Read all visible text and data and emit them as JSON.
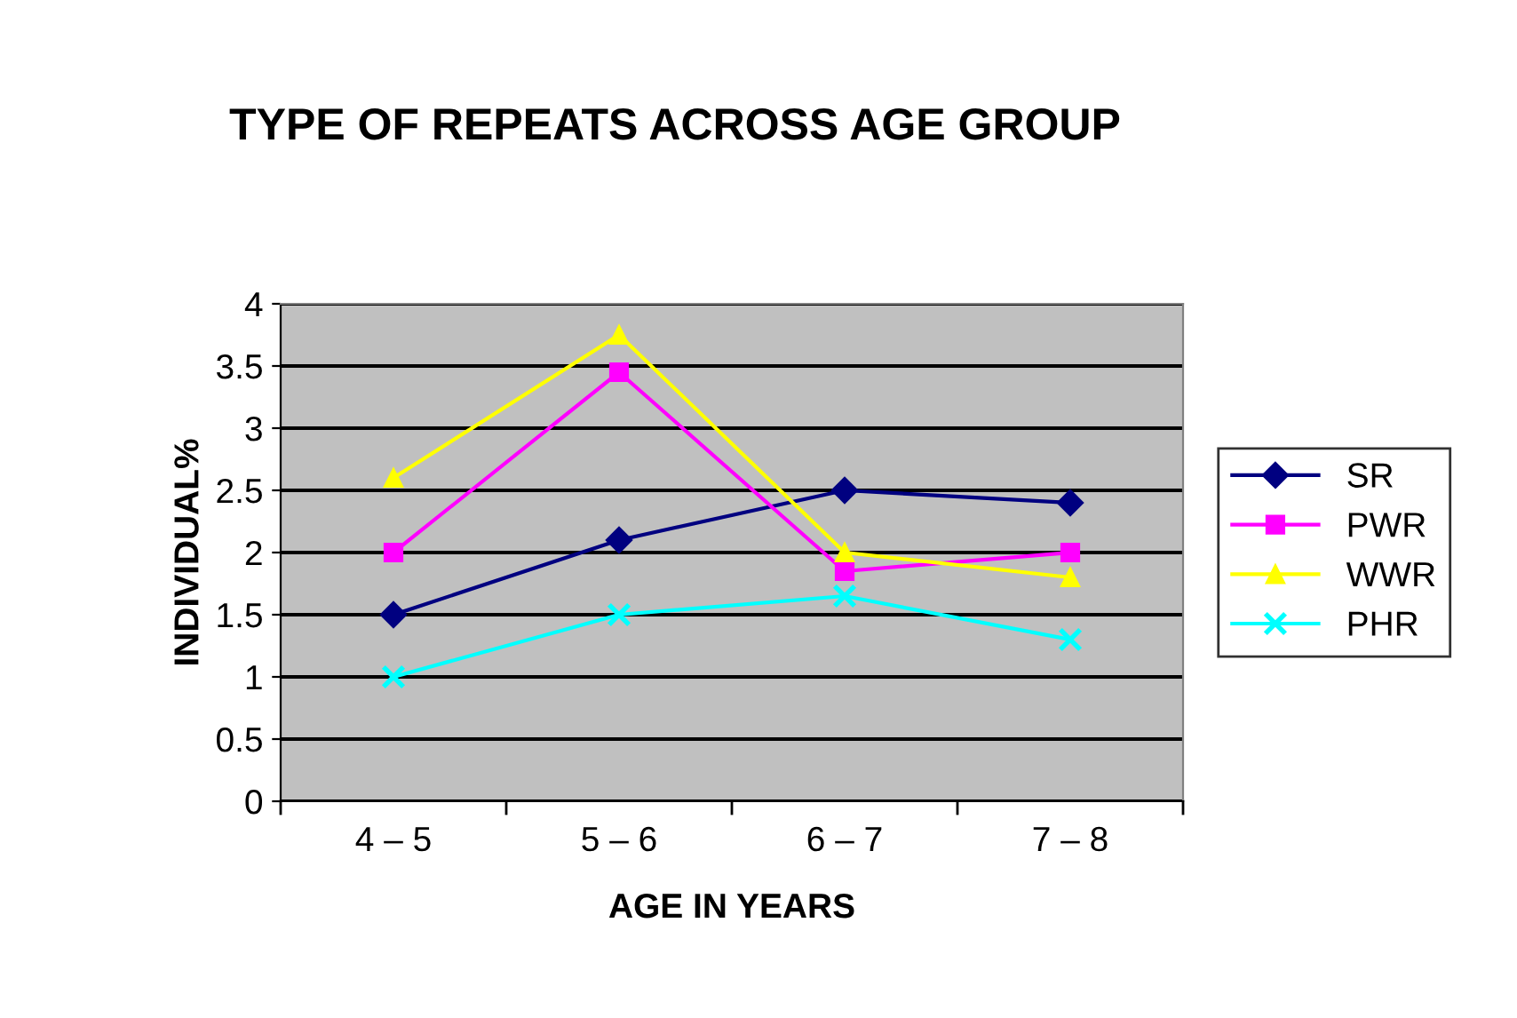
{
  "chart_data": {
    "type": "line",
    "title": "TYPE OF REPEATS ACROSS AGE GROUP",
    "xlabel": "AGE IN YEARS",
    "ylabel": "INDIVIDUAL%",
    "categories": [
      "4 – 5",
      "5 – 6",
      "6 – 7",
      "7 – 8"
    ],
    "series": [
      {
        "name": "SR",
        "color": "#000080",
        "marker": "diamond",
        "values": [
          1.5,
          2.1,
          2.5,
          2.4
        ]
      },
      {
        "name": "PWR",
        "color": "#ff00ff",
        "marker": "square",
        "values": [
          2.0,
          3.45,
          1.85,
          2.0
        ]
      },
      {
        "name": "WWR",
        "color": "#ffff00",
        "marker": "triangle",
        "values": [
          2.6,
          3.75,
          2.0,
          1.8
        ]
      },
      {
        "name": "PHR",
        "color": "#00ffff",
        "marker": "cross",
        "values": [
          1.0,
          1.5,
          1.65,
          1.3
        ]
      }
    ],
    "ylim": [
      0,
      4
    ],
    "yticks": [
      0,
      0.5,
      1,
      1.5,
      2,
      2.5,
      3,
      3.5,
      4
    ],
    "grid": "y",
    "legend": "right"
  }
}
